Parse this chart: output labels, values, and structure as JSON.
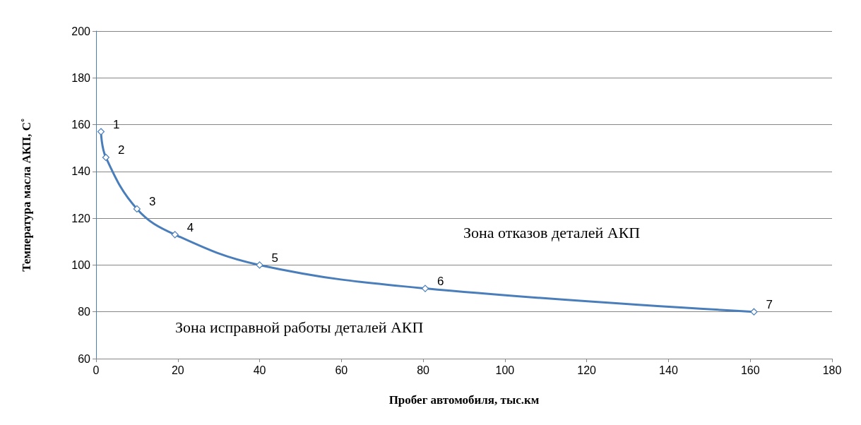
{
  "chart_data": {
    "type": "line",
    "xlabel": "Пробег автомобиля, тыс.км",
    "ylabel": "Температура масла АКП, С˚",
    "x": [
      1.2,
      2.4,
      10,
      19.3,
      40,
      80.5,
      160.9
    ],
    "series": [
      {
        "color": "#4a7ebb",
        "values": [
          157,
          146,
          124,
          113,
          100,
          90,
          80
        ]
      }
    ],
    "xlim": [
      0,
      180
    ],
    "xticks": [
      0,
      20,
      40,
      60,
      80,
      100,
      120,
      140,
      160,
      180
    ],
    "ylim": [
      60,
      200
    ],
    "yticks": [
      60,
      80,
      100,
      120,
      140,
      160,
      180,
      200
    ],
    "grid": "y",
    "marker": "diamond",
    "line_style": "solid",
    "annotations": [
      {
        "text": "1",
        "x": 1.2,
        "y": 157
      },
      {
        "text": "2",
        "x": 2.4,
        "y": 146
      },
      {
        "text": "3",
        "x": 10,
        "y": 124
      },
      {
        "text": "4",
        "x": 19.3,
        "y": 113
      },
      {
        "text": "5",
        "x": 40,
        "y": 100
      },
      {
        "text": "6",
        "x": 80.5,
        "y": 90
      },
      {
        "text": "7",
        "x": 160.9,
        "y": 80
      },
      "Зона отказов деталей АКП",
      "Зона исправной работы деталей АКП"
    ]
  }
}
